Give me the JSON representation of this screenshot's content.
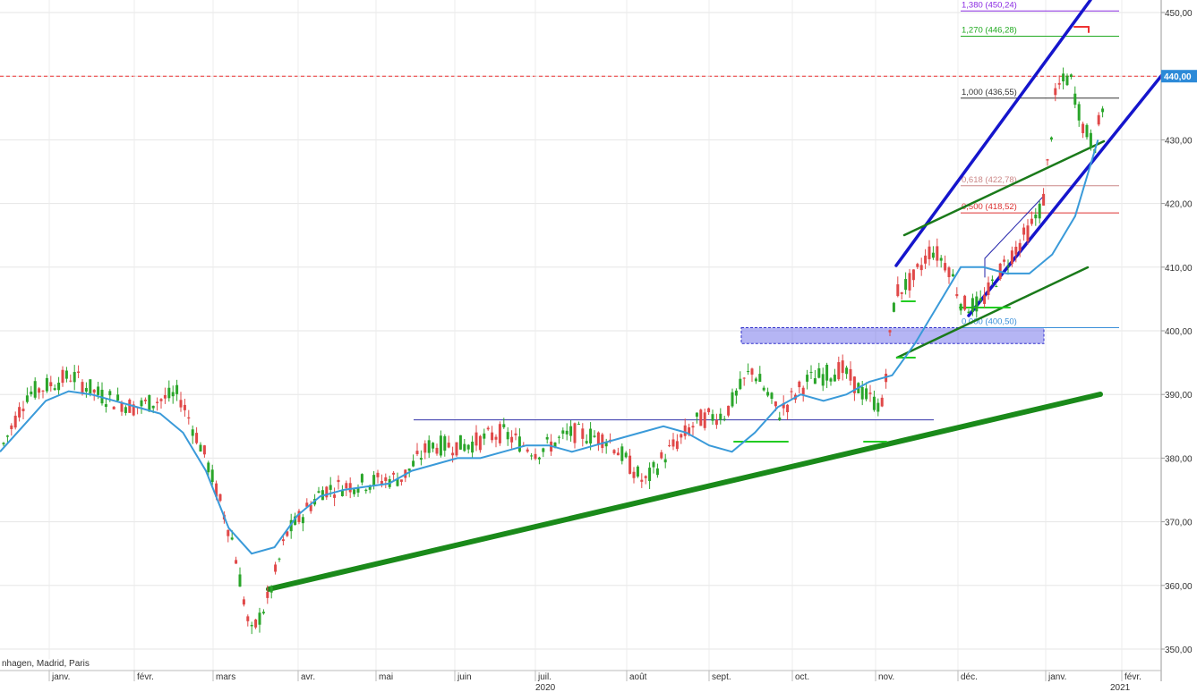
{
  "chart_data": {
    "type": "candlestick",
    "price_axis": {
      "min": 346,
      "max": 452,
      "ticks": [
        "450,00",
        "440,00",
        "430,00",
        "420,00",
        "410,00",
        "400,00",
        "390,00",
        "380,00",
        "370,00",
        "360,00",
        "350,00"
      ],
      "tick_values": [
        450,
        440,
        430,
        420,
        410,
        400,
        390,
        380,
        370,
        360,
        350
      ],
      "last_price_label": "440,00",
      "last_price": 440.0
    },
    "time_axis": {
      "months": [
        "janv.",
        "févr.",
        "mars",
        "avr.",
        "mai",
        "juin",
        "juil.",
        "août",
        "sept.",
        "oct.",
        "nov.",
        "déc.",
        "janv.",
        "févr."
      ],
      "year_labels": [
        "2020",
        "2021"
      ]
    },
    "source_text": "nhagen, Madrid, Paris",
    "fibonacci_levels": [
      {
        "label": "1,380 (450,24)",
        "value": 450.24,
        "color": "#8a2be2"
      },
      {
        "label": "1,270 (446,28)",
        "value": 446.28,
        "color": "#22aa22"
      },
      {
        "label": "1,000 (436,55)",
        "value": 436.55,
        "color": "#333333"
      },
      {
        "label": "0,618 (422,78)",
        "value": 422.78,
        "color": "#cc8888"
      },
      {
        "label": "0,500 (418,52)",
        "value": 418.52,
        "color": "#dd3333"
      },
      {
        "label": "0,000 (400,50)",
        "value": 400.5,
        "color": "#3a8fd9"
      }
    ],
    "support_zone": {
      "low": 398.0,
      "high": 400.5
    },
    "horizontal_level": 386.0,
    "series": [
      {
        "name": "",
        "type": "moving_average",
        "color": "#3a9ad9",
        "x": [
          0,
          0.02,
          0.04,
          0.06,
          0.08,
          0.1,
          0.12,
          0.14,
          0.16,
          0.18,
          0.2,
          0.22,
          0.24,
          0.26,
          0.28,
          0.3,
          0.32,
          0.34,
          0.36,
          0.38,
          0.4,
          0.42,
          0.44,
          0.46,
          0.48,
          0.5,
          0.52,
          0.54,
          0.56,
          0.58,
          0.6,
          0.62,
          0.64,
          0.66,
          0.68,
          0.7,
          0.72,
          0.74,
          0.76,
          0.78,
          0.8,
          0.82,
          0.84,
          0.86,
          0.88,
          0.9,
          0.92,
          0.94,
          0.96
        ],
        "y": [
          381,
          385,
          389,
          390.5,
          390,
          389,
          388,
          387,
          384,
          378,
          369,
          365,
          366,
          371,
          374,
          375,
          375.5,
          376,
          378,
          379,
          380,
          380,
          381,
          382,
          382,
          381,
          382,
          383,
          384,
          385,
          384,
          382,
          381,
          384,
          388,
          390,
          389,
          390,
          392,
          393,
          398,
          404,
          410,
          410,
          409,
          409,
          412,
          418,
          430
        ]
      }
    ]
  }
}
